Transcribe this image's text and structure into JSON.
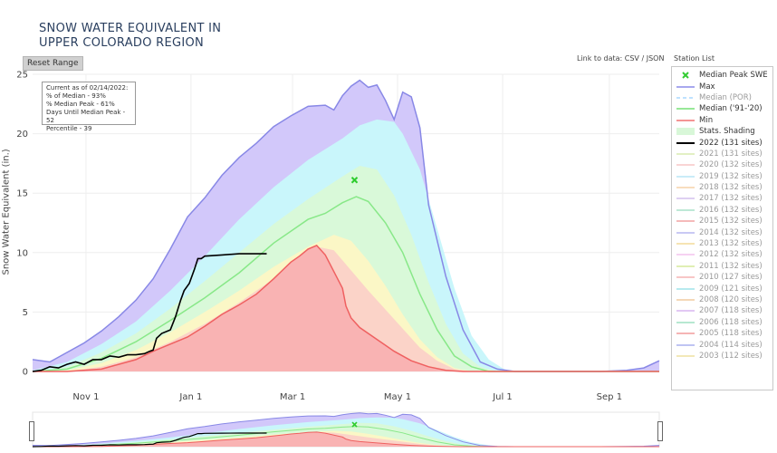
{
  "title_line1": "SNOW WATER EQUIVALENT IN",
  "title_line2": "UPPER COLORADO REGION",
  "reset_label": "Reset Range",
  "link_prefix": "Link to data:",
  "link_csv": "CSV",
  "link_sep": "/",
  "link_json": "JSON",
  "station_list_label": "Station List",
  "info": [
    "Current as of 02/14/2022:",
    "% of Median - 93%",
    "% Median Peak - 61%",
    "Days Until Median Peak - 52",
    "Percentile - 39"
  ],
  "legend": [
    {
      "label": "Median Peak SWE",
      "color": "#33cc33",
      "kind": "marker",
      "dim": false
    },
    {
      "label": "Max",
      "color": "#8c8ce8",
      "kind": "line",
      "dim": false
    },
    {
      "label": "Median (POR)",
      "color": "#a8d8ff",
      "kind": "dash",
      "dim": true
    },
    {
      "label": "Median ('91-'20)",
      "color": "#77e077",
      "kind": "line",
      "dim": false
    },
    {
      "label": "Min",
      "color": "#f07070",
      "kind": "line",
      "dim": false
    },
    {
      "label": "Stats. Shading",
      "color": "#d8f7d8",
      "kind": "fill",
      "dim": false
    },
    {
      "label": "2022 (131 sites)",
      "color": "#000000",
      "kind": "line",
      "dim": false
    },
    {
      "label": "2021 (131 sites)",
      "color": "#d9ecb0",
      "kind": "line",
      "dim": true
    },
    {
      "label": "2020 (132 sites)",
      "color": "#f7c6c6",
      "kind": "line",
      "dim": true
    },
    {
      "label": "2019 (132 sites)",
      "color": "#b9e6f5",
      "kind": "line",
      "dim": true
    },
    {
      "label": "2018 (132 sites)",
      "color": "#f5d2a8",
      "kind": "line",
      "dim": true
    },
    {
      "label": "2017 (132 sites)",
      "color": "#d3c0ee",
      "kind": "line",
      "dim": true
    },
    {
      "label": "2016 (132 sites)",
      "color": "#a8e0c8",
      "kind": "line",
      "dim": true
    },
    {
      "label": "2015 (132 sites)",
      "color": "#f2a3a3",
      "kind": "line",
      "dim": true
    },
    {
      "label": "2014 (132 sites)",
      "color": "#b7b7f0",
      "kind": "line",
      "dim": true
    },
    {
      "label": "2013 (132 sites)",
      "color": "#f3dc9a",
      "kind": "line",
      "dim": true
    },
    {
      "label": "2012 (132 sites)",
      "color": "#f3c3ee",
      "kind": "line",
      "dim": true
    },
    {
      "label": "2011 (132 sites)",
      "color": "#d5ea9c",
      "kind": "line",
      "dim": true
    },
    {
      "label": "2010 (127 sites)",
      "color": "#f6b3b3",
      "kind": "line",
      "dim": true
    },
    {
      "label": "2009 (121 sites)",
      "color": "#9fe4ea",
      "kind": "line",
      "dim": true
    },
    {
      "label": "2008 (120 sites)",
      "color": "#f1cba0",
      "kind": "line",
      "dim": true
    },
    {
      "label": "2007 (118 sites)",
      "color": "#d9b6f0",
      "kind": "line",
      "dim": true
    },
    {
      "label": "2006 (118 sites)",
      "color": "#9fe0c2",
      "kind": "line",
      "dim": true
    },
    {
      "label": "2005 (118 sites)",
      "color": "#f29b9b",
      "kind": "line",
      "dim": true
    },
    {
      "label": "2004 (114 sites)",
      "color": "#aab0ef",
      "kind": "line",
      "dim": true
    },
    {
      "label": "2003 (112 sites)",
      "color": "#efe0a0",
      "kind": "line",
      "dim": true
    }
  ],
  "chart_data": {
    "type": "area",
    "ylabel": "Snow Water Equivalent (in.)",
    "ylim": [
      0,
      25
    ],
    "yticks": [
      0,
      5,
      10,
      15,
      20,
      25
    ],
    "xticks": [
      {
        "label": "Nov 1",
        "day": 31
      },
      {
        "label": "Jan 1",
        "day": 92
      },
      {
        "label": "Mar 1",
        "day": 151
      },
      {
        "label": "May 1",
        "day": 212
      },
      {
        "label": "Jul 1",
        "day": 273
      },
      {
        "label": "Sep 1",
        "day": 335
      }
    ],
    "xlim": [
      0,
      364
    ],
    "x_unit": "days since Oct 1",
    "colors": {
      "max_fill": "#d2c8fa",
      "p90_fill": "#c9f6fb",
      "p70_fill": "#d9f9d9",
      "p30_fill": "#fbf7c6",
      "p10_fill": "#fbd3c8",
      "min_fill": "#f9b3b3",
      "max_line": "#8888e6",
      "median_line": "#88e888",
      "min_line": "#ef6060",
      "current_line": "#000000",
      "peak_marker": "#2ecc2e"
    },
    "median_peak": {
      "day": 187,
      "value": 16.1
    },
    "series": {
      "max": [
        [
          0,
          1
        ],
        [
          10,
          0.8
        ],
        [
          20,
          1.6
        ],
        [
          30,
          2.4
        ],
        [
          40,
          3.4
        ],
        [
          50,
          4.6
        ],
        [
          60,
          6.0
        ],
        [
          70,
          7.8
        ],
        [
          80,
          10.3
        ],
        [
          90,
          13.0
        ],
        [
          100,
          14.6
        ],
        [
          110,
          16.5
        ],
        [
          120,
          18.0
        ],
        [
          130,
          19.2
        ],
        [
          140,
          20.6
        ],
        [
          150,
          21.5
        ],
        [
          160,
          22.3
        ],
        [
          170,
          22.4
        ],
        [
          175,
          22.0
        ],
        [
          180,
          23.2
        ],
        [
          185,
          24.0
        ],
        [
          190,
          24.5
        ],
        [
          195,
          23.9
        ],
        [
          200,
          24.1
        ],
        [
          205,
          22.8
        ],
        [
          210,
          21.2
        ],
        [
          215,
          23.5
        ],
        [
          220,
          23.1
        ],
        [
          225,
          20.5
        ],
        [
          230,
          14.0
        ],
        [
          240,
          8.0
        ],
        [
          250,
          3.5
        ],
        [
          260,
          0.8
        ],
        [
          270,
          0.2
        ],
        [
          280,
          0.0
        ],
        [
          330,
          0.0
        ],
        [
          345,
          0.1
        ],
        [
          355,
          0.3
        ],
        [
          364,
          0.9
        ]
      ],
      "p90": [
        [
          0,
          0.1
        ],
        [
          20,
          0.8
        ],
        [
          40,
          2.3
        ],
        [
          60,
          4.2
        ],
        [
          80,
          6.8
        ],
        [
          100,
          9.7
        ],
        [
          120,
          12.8
        ],
        [
          140,
          15.5
        ],
        [
          160,
          17.8
        ],
        [
          180,
          19.6
        ],
        [
          190,
          20.7
        ],
        [
          200,
          21.2
        ],
        [
          210,
          21.0
        ],
        [
          215,
          20.0
        ],
        [
          225,
          17.0
        ],
        [
          235,
          12.0
        ],
        [
          245,
          7.0
        ],
        [
          255,
          3.0
        ],
        [
          265,
          1.0
        ],
        [
          275,
          0.1
        ],
        [
          280,
          0.0
        ],
        [
          364,
          0.0
        ]
      ],
      "p70": [
        [
          0,
          0.0
        ],
        [
          20,
          0.4
        ],
        [
          40,
          1.6
        ],
        [
          60,
          3.2
        ],
        [
          80,
          5.3
        ],
        [
          100,
          7.6
        ],
        [
          120,
          10.0
        ],
        [
          140,
          12.4
        ],
        [
          160,
          14.5
        ],
        [
          180,
          16.4
        ],
        [
          190,
          17.3
        ],
        [
          200,
          17.0
        ],
        [
          210,
          14.8
        ],
        [
          220,
          11.5
        ],
        [
          230,
          7.5
        ],
        [
          240,
          4.0
        ],
        [
          250,
          1.5
        ],
        [
          260,
          0.4
        ],
        [
          270,
          0.0
        ],
        [
          364,
          0.0
        ]
      ],
      "median": [
        [
          0,
          0.0
        ],
        [
          20,
          0.2
        ],
        [
          40,
          1.1
        ],
        [
          60,
          2.5
        ],
        [
          80,
          4.3
        ],
        [
          100,
          6.2
        ],
        [
          120,
          8.3
        ],
        [
          140,
          10.8
        ],
        [
          160,
          12.8
        ],
        [
          170,
          13.3
        ],
        [
          180,
          14.2
        ],
        [
          188,
          14.7
        ],
        [
          195,
          14.3
        ],
        [
          205,
          12.5
        ],
        [
          215,
          10.0
        ],
        [
          225,
          6.5
        ],
        [
          235,
          3.5
        ],
        [
          245,
          1.3
        ],
        [
          255,
          0.4
        ],
        [
          265,
          0.0
        ],
        [
          364,
          0.0
        ]
      ],
      "p30": [
        [
          0,
          0.0
        ],
        [
          20,
          0.1
        ],
        [
          40,
          0.7
        ],
        [
          60,
          1.8
        ],
        [
          80,
          3.3
        ],
        [
          100,
          5.0
        ],
        [
          120,
          6.8
        ],
        [
          140,
          8.8
        ],
        [
          160,
          10.5
        ],
        [
          175,
          11.5
        ],
        [
          185,
          11.0
        ],
        [
          195,
          9.3
        ],
        [
          205,
          7.2
        ],
        [
          215,
          4.8
        ],
        [
          225,
          2.7
        ],
        [
          235,
          1.2
        ],
        [
          245,
          0.3
        ],
        [
          255,
          0.0
        ],
        [
          364,
          0.0
        ]
      ],
      "p10": [
        [
          0,
          0.0
        ],
        [
          20,
          0.0
        ],
        [
          40,
          0.4
        ],
        [
          60,
          1.2
        ],
        [
          80,
          2.5
        ],
        [
          100,
          4.0
        ],
        [
          120,
          5.8
        ],
        [
          140,
          7.8
        ],
        [
          155,
          9.6
        ],
        [
          165,
          10.5
        ],
        [
          175,
          10.2
        ],
        [
          185,
          8.5
        ],
        [
          195,
          6.8
        ],
        [
          205,
          5.2
        ],
        [
          215,
          3.6
        ],
        [
          225,
          2.0
        ],
        [
          235,
          0.9
        ],
        [
          245,
          0.2
        ],
        [
          255,
          0.0
        ],
        [
          364,
          0.0
        ]
      ],
      "min": [
        [
          0,
          0.0
        ],
        [
          20,
          0.0
        ],
        [
          40,
          0.2
        ],
        [
          50,
          0.6
        ],
        [
          60,
          1.0
        ],
        [
          70,
          1.7
        ],
        [
          80,
          2.3
        ],
        [
          90,
          2.9
        ],
        [
          100,
          3.8
        ],
        [
          110,
          4.8
        ],
        [
          120,
          5.6
        ],
        [
          130,
          6.5
        ],
        [
          140,
          7.8
        ],
        [
          145,
          8.5
        ],
        [
          150,
          9.2
        ],
        [
          155,
          9.7
        ],
        [
          160,
          10.3
        ],
        [
          165,
          10.6
        ],
        [
          170,
          9.8
        ],
        [
          175,
          8.4
        ],
        [
          180,
          7.0
        ],
        [
          182,
          5.5
        ],
        [
          185,
          4.5
        ],
        [
          190,
          3.7
        ],
        [
          200,
          2.7
        ],
        [
          210,
          1.7
        ],
        [
          220,
          0.9
        ],
        [
          230,
          0.4
        ],
        [
          240,
          0.1
        ],
        [
          250,
          0.0
        ],
        [
          364,
          0.0
        ]
      ],
      "current": [
        [
          0,
          0.0
        ],
        [
          5,
          0.1
        ],
        [
          10,
          0.4
        ],
        [
          15,
          0.3
        ],
        [
          20,
          0.6
        ],
        [
          25,
          0.8
        ],
        [
          30,
          0.6
        ],
        [
          35,
          1.0
        ],
        [
          40,
          1.0
        ],
        [
          45,
          1.3
        ],
        [
          50,
          1.2
        ],
        [
          55,
          1.4
        ],
        [
          60,
          1.4
        ],
        [
          65,
          1.5
        ],
        [
          68,
          1.7
        ],
        [
          70,
          1.8
        ],
        [
          72,
          2.8
        ],
        [
          75,
          3.2
        ],
        [
          80,
          3.5
        ],
        [
          83,
          4.6
        ],
        [
          86,
          6.0
        ],
        [
          88,
          6.8
        ],
        [
          91,
          7.4
        ],
        [
          94,
          8.6
        ],
        [
          96,
          9.5
        ],
        [
          98,
          9.5
        ],
        [
          100,
          9.7
        ],
        [
          110,
          9.8
        ],
        [
          120,
          9.9
        ],
        [
          136,
          9.9
        ]
      ]
    }
  }
}
